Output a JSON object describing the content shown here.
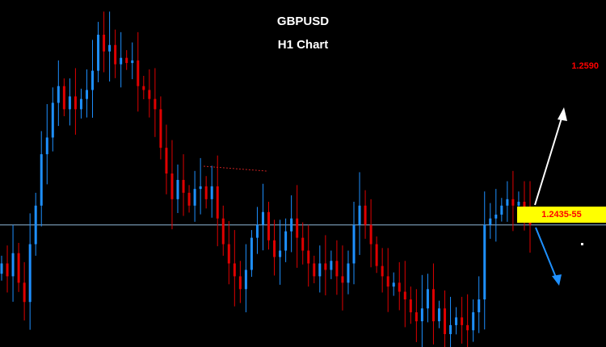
{
  "symbol": "GBPUSD",
  "subtitle": "H1 Chart",
  "target_label": "1.2590",
  "current_price_label": "1.2435-55",
  "colors": {
    "background": "#000000",
    "bull_candle": "#1e90ff",
    "bear_candle": "#e00000",
    "price_line": "#8fb8d8",
    "up_arrow": "#ffffff",
    "down_arrow": "#1e90ff",
    "trendline": "#cc2222",
    "label_bg": "#ffff00",
    "label_text": "#ff0000"
  },
  "chart_data": {
    "type": "candlestick",
    "title": "GBPUSD",
    "subtitle": "H1 Chart",
    "ylim": [
      1.235,
      1.261
    ],
    "current_price": 1.244,
    "target_price": 1.259,
    "support_price": 1.2425,
    "grid": false,
    "closes": [
      1.241,
      1.24,
      1.2418,
      1.2395,
      1.238,
      1.2425,
      1.2455,
      1.2495,
      1.2508,
      1.2535,
      1.2548,
      1.253,
      1.254,
      1.253,
      1.2538,
      1.2545,
      1.256,
      1.2588,
      1.2575,
      1.258,
      1.2565,
      1.257,
      1.2566,
      1.2568,
      1.2548,
      1.2545,
      1.2538,
      1.253,
      1.25,
      1.248,
      1.246,
      1.2475,
      1.2465,
      1.2455,
      1.2468,
      1.247,
      1.246,
      1.247,
      1.2445,
      1.2425,
      1.241,
      1.24,
      1.239,
      1.2405,
      1.243,
      1.244,
      1.245,
      1.2428,
      1.2415,
      1.242,
      1.2435,
      1.2445,
      1.243,
      1.242,
      1.241,
      1.24,
      1.241,
      1.2405,
      1.2412,
      1.24,
      1.2395,
      1.241,
      1.244,
      1.2455,
      1.244,
      1.2425,
      1.2408,
      1.24,
      1.2392,
      1.2395,
      1.2388,
      1.2382,
      1.2372,
      1.2365,
      1.2375,
      1.239,
      1.2365,
      1.2375,
      1.2355,
      1.2362,
      1.2368,
      1.2362,
      1.2358,
      1.2372,
      1.2382,
      1.244,
      1.2445,
      1.2448,
      1.2455,
      1.246,
      1.2455,
      1.2458,
      1.245,
      1.244
    ]
  }
}
